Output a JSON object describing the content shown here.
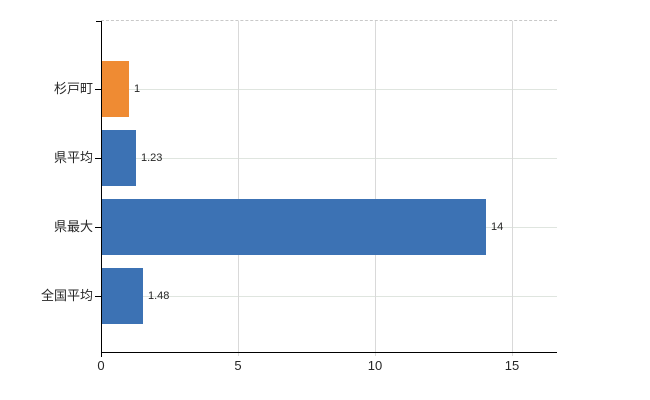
{
  "chart_data": {
    "type": "bar",
    "orientation": "horizontal",
    "title": "",
    "xlabel": "",
    "ylabel": "",
    "categories": [
      "杉戸町",
      "県平均",
      "県最大",
      "全国平均"
    ],
    "values": [
      1,
      1.23,
      14,
      1.48
    ],
    "value_labels": [
      "1",
      "1.23",
      "14",
      "1.48"
    ],
    "series": [
      {
        "name": "value",
        "values": [
          1,
          1.23,
          14,
          1.48
        ],
        "bar_colors": [
          "#ef8b33",
          "#3c72b4",
          "#3c72b4",
          "#3c72b4"
        ]
      }
    ],
    "x_ticks": [
      0,
      5,
      10,
      15
    ],
    "x_tick_labels": [
      "0",
      "5",
      "10",
      "15"
    ],
    "xlim": [
      0,
      16.6
    ],
    "grid": "on",
    "legend": "none",
    "colors": {
      "bar_orange": "#ef8b33",
      "bar_blue": "#3c72b4",
      "axis": "#000000",
      "grid_vertical": "#d9d9d9",
      "grid_horizontal": "#dfe5df",
      "top_border_dashed": "#c9c9c9",
      "text": "#262626",
      "background": "#ffffff"
    }
  }
}
